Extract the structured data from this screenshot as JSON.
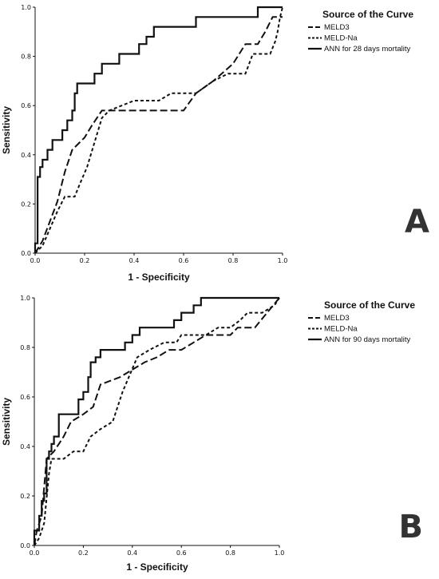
{
  "chart_data": [
    {
      "type": "line",
      "panel_label": "A",
      "xlabel": "1 - Specificity",
      "ylabel": "Sensitivity",
      "xlim": [
        0,
        1
      ],
      "ylim": [
        0,
        1
      ],
      "x_ticks": [
        "0.0",
        "0.2",
        "0.4",
        "0.6",
        "0.8",
        "1.0"
      ],
      "y_ticks": [
        "0.0",
        "0.2",
        "0.4",
        "0.6",
        "0.8",
        "1.0"
      ],
      "legend_title": "Source of the Curve",
      "legend_position": "top-right",
      "grid": false,
      "series": [
        {
          "name": "MELD3",
          "line_style": "long-dash",
          "points": [
            [
              0,
              0
            ],
            [
              0.03,
              0.05
            ],
            [
              0.06,
              0.13
            ],
            [
              0.09,
              0.21
            ],
            [
              0.12,
              0.33
            ],
            [
              0.15,
              0.42
            ],
            [
              0.2,
              0.47
            ],
            [
              0.23,
              0.52
            ],
            [
              0.27,
              0.58
            ],
            [
              0.4,
              0.58
            ],
            [
              0.6,
              0.58
            ],
            [
              0.65,
              0.65
            ],
            [
              0.72,
              0.7
            ],
            [
              0.8,
              0.77
            ],
            [
              0.85,
              0.85
            ],
            [
              0.9,
              0.85
            ],
            [
              0.93,
              0.9
            ],
            [
              0.96,
              0.96
            ],
            [
              1.0,
              0.96
            ]
          ]
        },
        {
          "name": "MELD-Na",
          "line_style": "short-dash",
          "points": [
            [
              0,
              0
            ],
            [
              0.03,
              0.03
            ],
            [
              0.06,
              0.1
            ],
            [
              0.09,
              0.17
            ],
            [
              0.12,
              0.23
            ],
            [
              0.16,
              0.23
            ],
            [
              0.18,
              0.28
            ],
            [
              0.21,
              0.35
            ],
            [
              0.24,
              0.45
            ],
            [
              0.27,
              0.55
            ],
            [
              0.3,
              0.58
            ],
            [
              0.35,
              0.6
            ],
            [
              0.4,
              0.62
            ],
            [
              0.5,
              0.62
            ],
            [
              0.55,
              0.65
            ],
            [
              0.65,
              0.65
            ],
            [
              0.72,
              0.7
            ],
            [
              0.78,
              0.73
            ],
            [
              0.85,
              0.73
            ],
            [
              0.88,
              0.81
            ],
            [
              0.95,
              0.81
            ],
            [
              0.97,
              0.86
            ],
            [
              0.98,
              0.9
            ],
            [
              0.99,
              0.96
            ],
            [
              1.0,
              1.0
            ]
          ]
        },
        {
          "name": "ANN for 28 days mortality",
          "line_style": "solid",
          "points": [
            [
              0,
              0
            ],
            [
              0,
              0.04
            ],
            [
              0.01,
              0.04
            ],
            [
              0.01,
              0.31
            ],
            [
              0.02,
              0.31
            ],
            [
              0.02,
              0.35
            ],
            [
              0.03,
              0.35
            ],
            [
              0.03,
              0.38
            ],
            [
              0.05,
              0.38
            ],
            [
              0.05,
              0.42
            ],
            [
              0.07,
              0.42
            ],
            [
              0.07,
              0.46
            ],
            [
              0.11,
              0.46
            ],
            [
              0.11,
              0.5
            ],
            [
              0.13,
              0.5
            ],
            [
              0.13,
              0.54
            ],
            [
              0.15,
              0.54
            ],
            [
              0.15,
              0.58
            ],
            [
              0.16,
              0.58
            ],
            [
              0.16,
              0.65
            ],
            [
              0.17,
              0.65
            ],
            [
              0.17,
              0.69
            ],
            [
              0.24,
              0.69
            ],
            [
              0.24,
              0.73
            ],
            [
              0.27,
              0.73
            ],
            [
              0.27,
              0.77
            ],
            [
              0.34,
              0.77
            ],
            [
              0.34,
              0.81
            ],
            [
              0.42,
              0.81
            ],
            [
              0.42,
              0.85
            ],
            [
              0.45,
              0.85
            ],
            [
              0.45,
              0.88
            ],
            [
              0.48,
              0.88
            ],
            [
              0.48,
              0.92
            ],
            [
              0.65,
              0.92
            ],
            [
              0.65,
              0.96
            ],
            [
              0.9,
              0.96
            ],
            [
              0.9,
              1.0
            ],
            [
              1.0,
              1.0
            ]
          ]
        }
      ]
    },
    {
      "type": "line",
      "panel_label": "B",
      "xlabel": "1 - Specificity",
      "ylabel": "Sensitivity",
      "xlim": [
        0,
        1
      ],
      "ylim": [
        0,
        1
      ],
      "x_ticks": [
        "0.0",
        "0.2",
        "0.4",
        "0.6",
        "0.8",
        "1.0"
      ],
      "y_ticks": [
        "0.0",
        "0.2",
        "0.4",
        "0.6",
        "0.8",
        "1.0"
      ],
      "legend_title": "Source of the Curve",
      "legend_position": "top-right",
      "grid": false,
      "series": [
        {
          "name": "MELD3",
          "line_style": "long-dash",
          "points": [
            [
              0,
              0
            ],
            [
              0.01,
              0.06
            ],
            [
              0.03,
              0.12
            ],
            [
              0.05,
              0.35
            ],
            [
              0.08,
              0.38
            ],
            [
              0.12,
              0.44
            ],
            [
              0.15,
              0.5
            ],
            [
              0.2,
              0.53
            ],
            [
              0.24,
              0.56
            ],
            [
              0.27,
              0.65
            ],
            [
              0.35,
              0.68
            ],
            [
              0.4,
              0.71
            ],
            [
              0.45,
              0.74
            ],
            [
              0.5,
              0.76
            ],
            [
              0.55,
              0.79
            ],
            [
              0.6,
              0.79
            ],
            [
              0.65,
              0.82
            ],
            [
              0.7,
              0.85
            ],
            [
              0.8,
              0.85
            ],
            [
              0.83,
              0.88
            ],
            [
              0.9,
              0.88
            ],
            [
              0.95,
              0.94
            ],
            [
              1.0,
              1.0
            ]
          ]
        },
        {
          "name": "MELD-Na",
          "line_style": "short-dash",
          "points": [
            [
              0,
              0
            ],
            [
              0.02,
              0.03
            ],
            [
              0.04,
              0.09
            ],
            [
              0.06,
              0.29
            ],
            [
              0.07,
              0.35
            ],
            [
              0.12,
              0.35
            ],
            [
              0.16,
              0.38
            ],
            [
              0.2,
              0.38
            ],
            [
              0.23,
              0.44
            ],
            [
              0.27,
              0.47
            ],
            [
              0.32,
              0.5
            ],
            [
              0.36,
              0.62
            ],
            [
              0.42,
              0.76
            ],
            [
              0.47,
              0.79
            ],
            [
              0.53,
              0.82
            ],
            [
              0.58,
              0.82
            ],
            [
              0.6,
              0.85
            ],
            [
              0.7,
              0.85
            ],
            [
              0.75,
              0.88
            ],
            [
              0.8,
              0.88
            ],
            [
              0.84,
              0.91
            ],
            [
              0.87,
              0.94
            ],
            [
              0.93,
              0.94
            ],
            [
              0.98,
              0.97
            ],
            [
              1.0,
              1.0
            ]
          ]
        },
        {
          "name": "ANN for 90 days mortality",
          "line_style": "solid",
          "points": [
            [
              0,
              0
            ],
            [
              0,
              0.06
            ],
            [
              0.02,
              0.06
            ],
            [
              0.02,
              0.12
            ],
            [
              0.03,
              0.12
            ],
            [
              0.03,
              0.18
            ],
            [
              0.04,
              0.18
            ],
            [
              0.04,
              0.21
            ],
            [
              0.05,
              0.21
            ],
            [
              0.05,
              0.35
            ],
            [
              0.06,
              0.35
            ],
            [
              0.06,
              0.38
            ],
            [
              0.07,
              0.38
            ],
            [
              0.07,
              0.41
            ],
            [
              0.08,
              0.41
            ],
            [
              0.08,
              0.44
            ],
            [
              0.1,
              0.44
            ],
            [
              0.1,
              0.53
            ],
            [
              0.18,
              0.53
            ],
            [
              0.18,
              0.59
            ],
            [
              0.2,
              0.59
            ],
            [
              0.2,
              0.62
            ],
            [
              0.22,
              0.62
            ],
            [
              0.22,
              0.68
            ],
            [
              0.23,
              0.68
            ],
            [
              0.23,
              0.74
            ],
            [
              0.25,
              0.74
            ],
            [
              0.25,
              0.76
            ],
            [
              0.27,
              0.76
            ],
            [
              0.27,
              0.79
            ],
            [
              0.37,
              0.79
            ],
            [
              0.37,
              0.82
            ],
            [
              0.4,
              0.82
            ],
            [
              0.4,
              0.85
            ],
            [
              0.43,
              0.85
            ],
            [
              0.43,
              0.88
            ],
            [
              0.57,
              0.88
            ],
            [
              0.57,
              0.91
            ],
            [
              0.6,
              0.91
            ],
            [
              0.6,
              0.94
            ],
            [
              0.65,
              0.94
            ],
            [
              0.65,
              0.97
            ],
            [
              0.68,
              0.97
            ],
            [
              0.68,
              1.0
            ],
            [
              1.0,
              1.0
            ]
          ]
        }
      ]
    }
  ]
}
